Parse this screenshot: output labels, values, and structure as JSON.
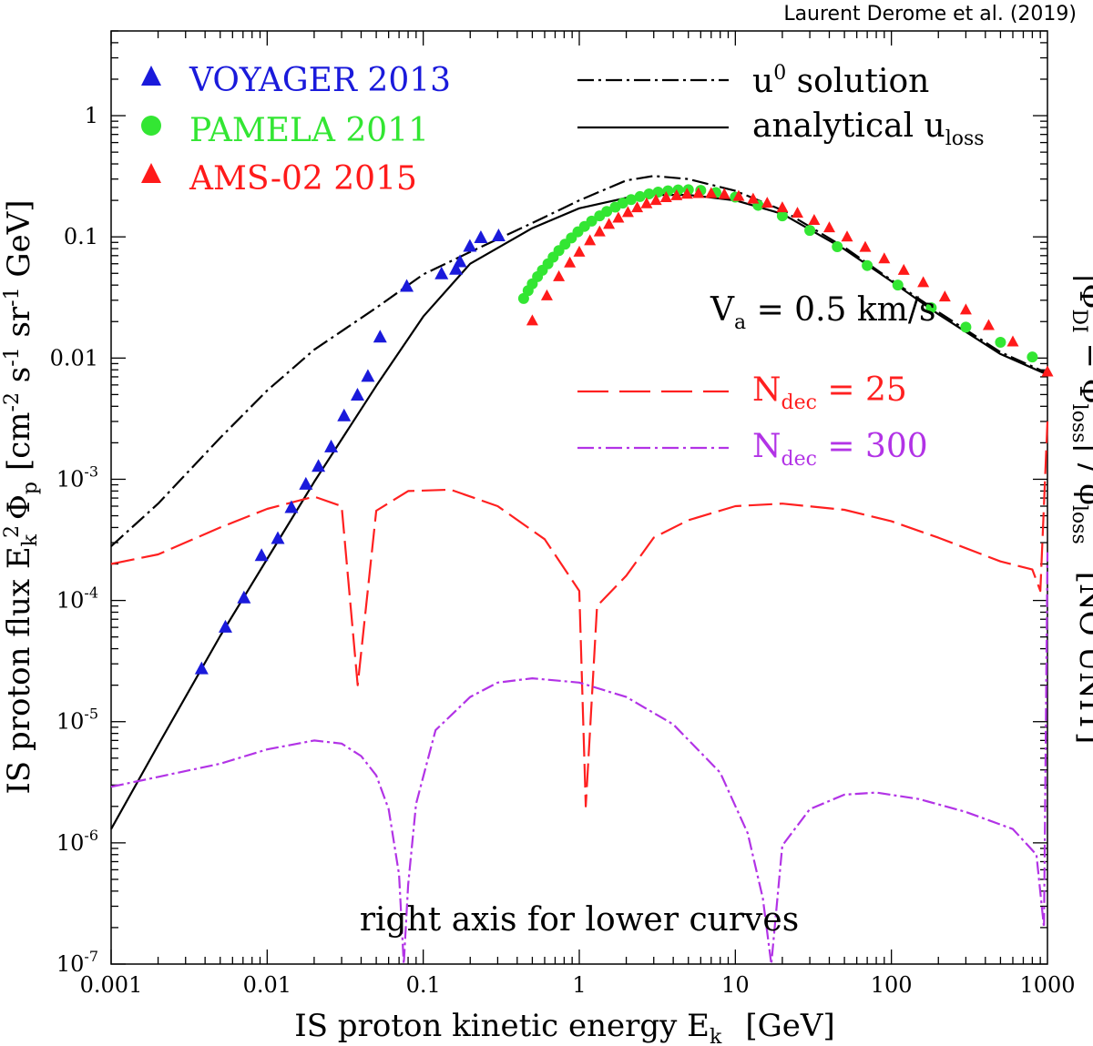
{
  "chart_data": {
    "type": "scatter",
    "title": "",
    "credit": "Laurent Derome et al. (2019)",
    "xlabel": "IS proton kinetic energy E",
    "xlabel_sub": "k",
    "xlabel_unit": "[GeV]",
    "ylabel_left": {
      "pre": "IS proton flux E",
      "sub_k": "k",
      "sup_2": "2",
      "phi": "Φ",
      "sub_p": "p",
      "units": "[cm",
      "e1": "-2",
      "s": " s",
      "e2": "-1",
      "sr": " sr",
      "e3": "-1",
      "gev": " GeV]"
    },
    "ylabel_right": {
      "text": "|Φ",
      "sub1": "DI",
      "mid": " − Φ",
      "sub2": "loss",
      "mid2": "| / φ",
      "sub3": "loss",
      "unit": "[NO UNIT]"
    },
    "xscale": "log",
    "yscale": "log",
    "xlim": [
      0.001,
      1000
    ],
    "ylim": [
      1e-07,
      5
    ],
    "x_ticks": [
      {
        "value": 0.001,
        "label": "0.001"
      },
      {
        "value": 0.01,
        "label": "0.01"
      },
      {
        "value": 0.1,
        "label": "0.1"
      },
      {
        "value": 1,
        "label": "1"
      },
      {
        "value": 10,
        "label": "10"
      },
      {
        "value": 100,
        "label": "100"
      },
      {
        "value": 1000,
        "label": "1000"
      }
    ],
    "y_ticks": [
      {
        "value": 1e-07,
        "base": "10",
        "exp": "-7"
      },
      {
        "value": 1e-06,
        "base": "10",
        "exp": "-6"
      },
      {
        "value": 1e-05,
        "base": "10",
        "exp": "-5"
      },
      {
        "value": 0.0001,
        "base": "10",
        "exp": "-4"
      },
      {
        "value": 0.001,
        "base": "10",
        "exp": "-3"
      },
      {
        "value": 0.01,
        "base": "0.01",
        "exp": ""
      },
      {
        "value": 0.1,
        "base": "0.1",
        "exp": ""
      },
      {
        "value": 1,
        "base": "1",
        "exp": ""
      }
    ],
    "legend_data": [
      {
        "label": "VOYAGER 2013",
        "color": "#1a1adb",
        "marker": "triangle"
      },
      {
        "label": "PAMELA 2011",
        "color": "#33e633",
        "marker": "circle"
      },
      {
        "label": "AMS-02 2015",
        "color": "#ff1a1a",
        "marker": "triangle"
      }
    ],
    "legend_models": [
      {
        "label": "u",
        "sup": "0",
        "suffix": " solution",
        "style": "dashdot"
      },
      {
        "label": "analytical u",
        "sub": "loss",
        "style": "solid"
      }
    ],
    "legend_lower": {
      "va_label": "V",
      "va_sub": "a",
      "va_value": " = 0.5  km/s",
      "items": [
        {
          "label": "N",
          "sub": "dec",
          "value": " = 25",
          "color": "#ff2020"
        },
        {
          "label": "N",
          "sub": "dec",
          "value": " = 300",
          "color": "#b233e6"
        }
      ]
    },
    "annotation": "right axis for lower curves",
    "colors": {
      "voyager": "#1a1adb",
      "pamela": "#33e633",
      "ams": "#ff1a1a",
      "model": "#000000",
      "ndec25": "#ff2020",
      "ndec300": "#b233e6"
    },
    "series": [
      {
        "name": "VOYAGER 2013",
        "type": "scatter",
        "x": [
          0.0038,
          0.0054,
          0.0071,
          0.0092,
          0.0117,
          0.0143,
          0.0177,
          0.0213,
          0.0257,
          0.0311,
          0.0379,
          0.0442,
          0.0529,
          0.0784,
          0.131,
          0.162,
          0.172,
          0.199,
          0.234,
          0.304
        ],
        "y": [
          2.73e-05,
          6.03e-05,
          0.000105,
          0.000235,
          0.000325,
          0.000585,
          0.00091,
          0.00128,
          0.00185,
          0.00334,
          0.00495,
          0.00707,
          0.0149,
          0.0391,
          0.0496,
          0.0541,
          0.0624,
          0.0837,
          0.0987,
          0.102
        ]
      },
      {
        "name": "PAMELA 2011",
        "type": "scatter",
        "x": [
          0.44,
          0.47,
          0.5,
          0.54,
          0.58,
          0.63,
          0.68,
          0.74,
          0.81,
          0.89,
          0.98,
          1.08,
          1.2,
          1.35,
          1.5,
          1.7,
          1.9,
          2.15,
          2.45,
          2.8,
          3.2,
          3.7,
          4.3,
          5.0,
          6.0,
          7.5,
          10,
          14,
          20,
          30,
          45,
          70,
          110,
          180,
          300,
          500,
          800
        ],
        "y": [
          0.031,
          0.036,
          0.041,
          0.047,
          0.053,
          0.06,
          0.068,
          0.077,
          0.087,
          0.098,
          0.11,
          0.122,
          0.135,
          0.149,
          0.162,
          0.176,
          0.19,
          0.203,
          0.215,
          0.226,
          0.234,
          0.24,
          0.244,
          0.245,
          0.242,
          0.232,
          0.213,
          0.182,
          0.149,
          0.113,
          0.083,
          0.058,
          0.04,
          0.026,
          0.018,
          0.0135,
          0.0102
        ]
      },
      {
        "name": "AMS-02 2015",
        "type": "scatter",
        "x": [
          0.5,
          0.62,
          0.74,
          0.87,
          1.0,
          1.17,
          1.35,
          1.55,
          1.78,
          2.05,
          2.35,
          2.7,
          3.1,
          3.6,
          4.2,
          4.9,
          5.8,
          7.0,
          8.5,
          10.5,
          13,
          16,
          20,
          25,
          32,
          40,
          52,
          68,
          90,
          120,
          160,
          220,
          300,
          420,
          600,
          1000
        ],
        "y": [
          0.0203,
          0.0327,
          0.047,
          0.061,
          0.075,
          0.093,
          0.11,
          0.127,
          0.143,
          0.159,
          0.174,
          0.188,
          0.2,
          0.211,
          0.219,
          0.225,
          0.228,
          0.228,
          0.224,
          0.216,
          0.205,
          0.19,
          0.174,
          0.157,
          0.137,
          0.119,
          0.1,
          0.082,
          0.066,
          0.053,
          0.042,
          0.032,
          0.025,
          0.0186,
          0.0136,
          0.0077
        ]
      },
      {
        "name": "u0 solution",
        "type": "line",
        "x": [
          0.001,
          0.002,
          0.005,
          0.01,
          0.02,
          0.05,
          0.1,
          0.2,
          0.5,
          1,
          2,
          3,
          5,
          10,
          20,
          50,
          100,
          200,
          500,
          1000
        ],
        "y": [
          0.00028,
          0.00063,
          0.0022,
          0.0054,
          0.0117,
          0.026,
          0.049,
          0.075,
          0.13,
          0.2,
          0.292,
          0.318,
          0.3,
          0.24,
          0.166,
          0.082,
          0.044,
          0.024,
          0.0112,
          0.0075
        ]
      },
      {
        "name": "analytical u_loss",
        "type": "line",
        "x": [
          0.001,
          0.002,
          0.005,
          0.01,
          0.02,
          0.05,
          0.1,
          0.2,
          0.5,
          1,
          2,
          3,
          5,
          10,
          20,
          50,
          100,
          200,
          500,
          1000
        ],
        "y": [
          1.3e-06,
          6.4e-06,
          5.1e-05,
          0.00022,
          0.00095,
          0.0059,
          0.022,
          0.06,
          0.118,
          0.172,
          0.21,
          0.222,
          0.222,
          0.2,
          0.155,
          0.079,
          0.043,
          0.023,
          0.0108,
          0.0073
        ]
      },
      {
        "name": "N_dec = 25 (relative deviation, right axis)",
        "type": "line",
        "x": [
          0.001,
          0.002,
          0.005,
          0.01,
          0.02,
          0.03,
          0.038,
          0.05,
          0.08,
          0.15,
          0.3,
          0.6,
          1.0,
          1.1,
          1.3,
          2.0,
          3,
          5,
          10,
          20,
          50,
          100,
          200,
          500,
          800,
          900,
          1000
        ],
        "y": [
          0.0002,
          0.00024,
          0.0004,
          0.00057,
          0.00072,
          0.0006,
          2e-05,
          0.00055,
          0.0008,
          0.00082,
          0.0006,
          0.00032,
          0.00012,
          2e-06,
          9e-05,
          0.00016,
          0.00033,
          0.00046,
          0.0006,
          0.00063,
          0.00056,
          0.00045,
          0.00033,
          0.00021,
          0.00018,
          0.00012,
          0.003
        ]
      },
      {
        "name": "N_dec = 300 (relative deviation, right axis)",
        "type": "line",
        "x": [
          0.001,
          0.002,
          0.005,
          0.01,
          0.02,
          0.03,
          0.04,
          0.05,
          0.06,
          0.07,
          0.075,
          0.08,
          0.09,
          0.12,
          0.2,
          0.3,
          0.5,
          1,
          2,
          4,
          8,
          12,
          15,
          17,
          20,
          30,
          50,
          80,
          150,
          300,
          600,
          850,
          950,
          1000
        ],
        "y": [
          2.9e-06,
          3.5e-06,
          4.5e-06,
          5.9e-06,
          7e-06,
          6.6e-06,
          5.2e-06,
          3.6e-06,
          1.9e-06,
          5.5e-07,
          1e-07,
          4.5e-07,
          2.1e-06,
          8.5e-06,
          1.6e-05,
          2.1e-05,
          2.28e-05,
          2.1e-05,
          1.6e-05,
          9.5e-06,
          3.8e-06,
          1.2e-06,
          3.5e-07,
          1e-07,
          9.5e-07,
          1.9e-06,
          2.5e-06,
          2.6e-06,
          2.3e-06,
          1.8e-06,
          1.3e-06,
          8e-07,
          2e-07,
          0.00025
        ]
      }
    ]
  }
}
